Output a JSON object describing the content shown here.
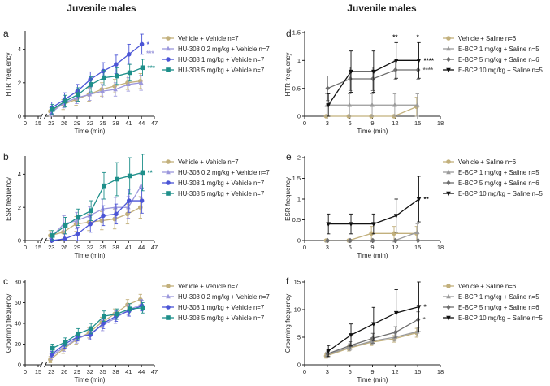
{
  "figure": {
    "left_title": "Juvenile males",
    "right_title": "Juvenile males"
  },
  "chart_data": [
    {
      "panel": "a",
      "type": "line",
      "ylabel": "HTR frequency",
      "xlabel": "Time (min)",
      "xlim": [
        0,
        47
      ],
      "ylim": [
        0,
        5
      ],
      "xticks": [
        0,
        15,
        23,
        26,
        29,
        32,
        35,
        38,
        41,
        44,
        47
      ],
      "yticks": [
        0,
        2,
        4
      ],
      "axis_break": [
        16,
        22
      ],
      "x": [
        23,
        26,
        29,
        32,
        35,
        38,
        41,
        44
      ],
      "series": [
        {
          "name": "Vehicle + Vehicle n=7",
          "color": "#c2b07c",
          "marker": "circle",
          "values": [
            0.3,
            0.7,
            1.0,
            1.3,
            1.6,
            1.8,
            2.0,
            2.1
          ],
          "err": [
            0.3,
            0.3,
            0.35,
            0.4,
            0.4,
            0.4,
            0.4,
            0.45
          ],
          "sig": ""
        },
        {
          "name": "HU-308 0.2 mg/kg + Vehicle n=7",
          "color": "#9b97dc",
          "marker": "triangle",
          "values": [
            0.2,
            0.8,
            1.1,
            1.3,
            1.5,
            1.6,
            1.9,
            2.0
          ],
          "err": [
            0.3,
            0.3,
            0.35,
            0.35,
            0.4,
            0.4,
            0.4,
            0.45
          ],
          "sig": ""
        },
        {
          "name": "HU-308 1 mg/kg + Vehicle n=7",
          "color": "#4b55d6",
          "marker": "circle",
          "values": [
            0.5,
            1.0,
            1.5,
            2.2,
            2.7,
            3.1,
            3.7,
            4.3
          ],
          "err": [
            0.35,
            0.4,
            0.4,
            0.45,
            0.5,
            0.55,
            0.6,
            0.6
          ],
          "sig": "*"
        },
        {
          "name": "HU-308 5 mg/kg + Vehicle n=7",
          "color": "#1e8f8a",
          "marker": "square",
          "values": [
            0.4,
            0.9,
            1.3,
            1.9,
            2.3,
            2.4,
            2.6,
            2.9
          ],
          "err": [
            0.3,
            0.35,
            0.4,
            0.45,
            0.45,
            0.5,
            0.5,
            0.5
          ],
          "sig": "***"
        }
      ],
      "extra_sig": [
        {
          "text": "***",
          "color": "#9b97dc"
        }
      ]
    },
    {
      "panel": "b",
      "type": "line",
      "ylabel": "ESR frequency",
      "xlabel": "Time (min)",
      "xlim": [
        0,
        47
      ],
      "ylim": [
        0,
        5
      ],
      "xticks": [
        0,
        15,
        23,
        26,
        29,
        32,
        35,
        38,
        41,
        44,
        47
      ],
      "yticks": [
        0,
        2,
        4
      ],
      "axis_break": [
        16,
        22
      ],
      "x": [
        23,
        26,
        29,
        32,
        35,
        38,
        41,
        44
      ],
      "series": [
        {
          "name": "Vehicle + Vehicle n=7",
          "color": "#c2b07c",
          "marker": "circle",
          "values": [
            0.3,
            0.5,
            1.0,
            1.1,
            1.2,
            1.3,
            1.6,
            2.0
          ],
          "err": [
            0.3,
            0.4,
            0.45,
            0.5,
            0.55,
            0.6,
            0.6,
            0.65
          ],
          "sig": ""
        },
        {
          "name": "HU-308 0.2 mg/kg + Vehicle n=7",
          "color": "#9b97dc",
          "marker": "triangle",
          "values": [
            0.2,
            1.0,
            1.2,
            1.5,
            1.9,
            2.0,
            2.0,
            3.3
          ],
          "err": [
            0.3,
            0.5,
            0.5,
            0.55,
            0.6,
            0.6,
            0.65,
            0.7
          ],
          "sig": ""
        },
        {
          "name": "HU-308 1 mg/kg + Vehicle n=7",
          "color": "#4b55d6",
          "marker": "circle",
          "values": [
            0.0,
            0.1,
            0.4,
            1.0,
            1.5,
            1.6,
            2.4,
            2.4
          ],
          "err": [
            0.2,
            0.3,
            0.4,
            0.5,
            0.6,
            0.6,
            0.7,
            0.75
          ],
          "sig": ""
        },
        {
          "name": "HU-308 5 mg/kg + Vehicle n=7",
          "color": "#1e8f8a",
          "marker": "square",
          "values": [
            0.3,
            0.9,
            1.4,
            1.8,
            3.3,
            3.7,
            3.9,
            4.1
          ],
          "err": [
            0.3,
            0.5,
            0.5,
            0.6,
            0.8,
            1.0,
            1.1,
            1.1
          ],
          "sig": "**"
        }
      ]
    },
    {
      "panel": "c",
      "type": "line",
      "ylabel": "Grooming frequency",
      "xlabel": "Time (min)",
      "xlim": [
        0,
        47
      ],
      "ylim": [
        0,
        80
      ],
      "xticks": [
        0,
        15,
        23,
        26,
        29,
        32,
        35,
        38,
        41,
        44,
        47
      ],
      "yticks": [
        0,
        20,
        40,
        60,
        80
      ],
      "axis_break": [
        16,
        22
      ],
      "x": [
        23,
        26,
        29,
        32,
        35,
        38,
        41,
        44
      ],
      "series": [
        {
          "name": "Vehicle + Vehicle n=7",
          "color": "#c2b07c",
          "marker": "circle",
          "values": [
            5,
            15,
            24,
            31,
            41,
            49,
            58,
            63
          ],
          "err": [
            3,
            4,
            4,
            5,
            5,
            5,
            5,
            5
          ],
          "sig": ""
        },
        {
          "name": "HU-308 0.2 mg/kg + Vehicle n=7",
          "color": "#9b97dc",
          "marker": "triangle",
          "values": [
            8,
            17,
            25,
            30,
            38,
            45,
            53,
            58
          ],
          "err": [
            3,
            4,
            4,
            5,
            5,
            5,
            5,
            5
          ],
          "sig": ""
        },
        {
          "name": "HU-308 1 mg/kg + Vehicle n=7",
          "color": "#4b55d6",
          "marker": "circle",
          "values": [
            10,
            20,
            27,
            29,
            40,
            47,
            52,
            57
          ],
          "err": [
            3,
            4,
            4,
            5,
            5,
            5,
            5,
            5
          ],
          "sig": ""
        },
        {
          "name": "HU-308 5 mg/kg + Vehicle n=7",
          "color": "#1e8f8a",
          "marker": "square",
          "values": [
            16,
            22,
            30,
            35,
            47,
            49,
            54,
            55
          ],
          "err": [
            4,
            4,
            5,
            5,
            5,
            5,
            5,
            5
          ],
          "sig": ""
        }
      ]
    },
    {
      "panel": "d",
      "type": "line",
      "ylabel": "HTR frequency",
      "xlabel": "Time (min)",
      "xlim": [
        0,
        18
      ],
      "ylim": [
        0,
        1.5
      ],
      "xticks": [
        0,
        3,
        6,
        9,
        12,
        15,
        18
      ],
      "yticks": [
        0.0,
        0.5,
        1.0,
        1.5
      ],
      "x": [
        3,
        6,
        9,
        12,
        15
      ],
      "series": [
        {
          "name": "Vehicle + Saline n=6",
          "color": "#c2b07c",
          "marker": "circle",
          "values": [
            0.0,
            0.0,
            0.0,
            0.0,
            0.17
          ],
          "err": [
            0,
            0,
            0,
            0,
            0.17
          ],
          "sig": ""
        },
        {
          "name": "E-BCP 1 mg/kg + Saline n=5",
          "color": "#9a9a9a",
          "marker": "triangle",
          "values": [
            0.2,
            0.2,
            0.2,
            0.2,
            0.2
          ],
          "err": [
            0.2,
            0.2,
            0.2,
            0.2,
            0.2
          ],
          "sig": ""
        },
        {
          "name": "E-BCP 5 mg/kg + Saline n=6",
          "color": "#6e6e6e",
          "marker": "diamond",
          "values": [
            0.5,
            0.67,
            0.67,
            0.83,
            0.83
          ],
          "err": [
            0.22,
            0.21,
            0.21,
            0.17,
            0.17
          ],
          "sig": "****"
        },
        {
          "name": "E-BCP 10 mg/kg + Saline n=5",
          "color": "#111111",
          "marker": "dtriangle",
          "values": [
            0.2,
            0.8,
            0.8,
            1.0,
            1.0
          ],
          "err": [
            0.2,
            0.37,
            0.37,
            0.32,
            0.32
          ],
          "sig": "****"
        }
      ],
      "point_sig": [
        {
          "x": 12,
          "text": "**"
        },
        {
          "x": 15,
          "text": "*"
        }
      ]
    },
    {
      "panel": "e",
      "type": "line",
      "ylabel": "ESR frequency",
      "xlabel": "Time (min)",
      "xlim": [
        0,
        18
      ],
      "ylim": [
        0,
        2.0
      ],
      "xticks": [
        0,
        3,
        6,
        9,
        12,
        15,
        18
      ],
      "yticks": [
        0.0,
        0.5,
        1.0,
        1.5,
        2.0
      ],
      "x": [
        3,
        6,
        9,
        12,
        15
      ],
      "series": [
        {
          "name": "Vehicle + Saline n=6",
          "color": "#c2b07c",
          "marker": "circle",
          "values": [
            0.0,
            0.0,
            0.17,
            0.17,
            0.17
          ],
          "err": [
            0,
            0,
            0.17,
            0.17,
            0.17
          ],
          "sig": ""
        },
        {
          "name": "E-BCP 1 mg/kg + Saline n=5",
          "color": "#9a9a9a",
          "marker": "triangle",
          "values": [
            0.0,
            0.0,
            0.0,
            0.0,
            0.2
          ],
          "err": [
            0,
            0,
            0,
            0,
            0.2
          ],
          "sig": ""
        },
        {
          "name": "E-BCP 5 mg/kg + Saline n=6",
          "color": "#6e6e6e",
          "marker": "diamond",
          "values": [
            0.0,
            0.0,
            0.0,
            0.0,
            0.0
          ],
          "err": [
            0,
            0,
            0,
            0,
            0
          ],
          "sig": ""
        },
        {
          "name": "E-BCP 10 mg/kg + Saline n=5",
          "color": "#111111",
          "marker": "dtriangle",
          "values": [
            0.4,
            0.4,
            0.4,
            0.6,
            1.0
          ],
          "err": [
            0.24,
            0.24,
            0.24,
            0.4,
            0.55
          ],
          "sig": "**"
        }
      ]
    },
    {
      "panel": "f",
      "type": "line",
      "ylabel": "Grooming frequency",
      "xlabel": "Time (min)",
      "xlim": [
        0,
        18
      ],
      "ylim": [
        0,
        15
      ],
      "xticks": [
        0,
        3,
        6,
        9,
        12,
        15,
        18
      ],
      "yticks": [
        0,
        5,
        10,
        15
      ],
      "x": [
        3,
        6,
        9,
        12,
        15
      ],
      "series": [
        {
          "name": "Vehicle + Saline n=6",
          "color": "#c2b07c",
          "marker": "circle",
          "values": [
            1.6,
            3.0,
            4.1,
            4.7,
            5.8
          ],
          "err": [
            0.4,
            0.5,
            0.6,
            0.6,
            0.8
          ],
          "sig": ""
        },
        {
          "name": "E-BCP 1 mg/kg + Saline n=5",
          "color": "#9a9a9a",
          "marker": "triangle",
          "values": [
            1.8,
            3.2,
            4.3,
            5.0,
            6.0
          ],
          "err": [
            0.5,
            0.6,
            0.6,
            0.7,
            0.8
          ],
          "sig": ""
        },
        {
          "name": "E-BCP 5 mg/kg + Saline n=6",
          "color": "#6e6e6e",
          "marker": "diamond",
          "values": [
            2.0,
            3.5,
            4.8,
            5.9,
            8.2
          ],
          "err": [
            0.5,
            0.7,
            0.9,
            1.0,
            1.4
          ],
          "sig": "*"
        },
        {
          "name": "E-BCP 10 mg/kg + Saline n=5",
          "color": "#111111",
          "marker": "dtriangle",
          "values": [
            2.5,
            5.4,
            7.4,
            9.4,
            10.5
          ],
          "err": [
            1.0,
            2.0,
            3.0,
            4.2,
            4.5
          ],
          "sig": "*"
        }
      ]
    }
  ]
}
